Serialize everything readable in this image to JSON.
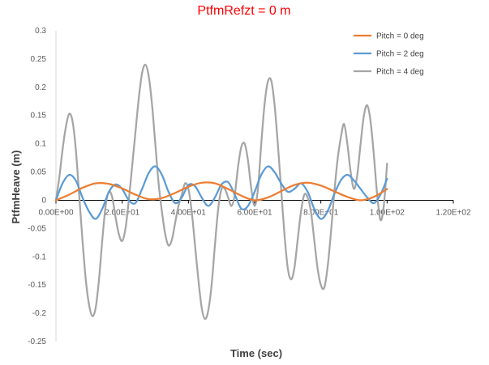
{
  "chart_data": {
    "type": "line",
    "title": "PtfmRefzt = 0 m",
    "xlabel": "Time (sec)",
    "ylabel": "PtfmHeave  (m)",
    "xlim": [
      0,
      120
    ],
    "ylim": [
      -0.25,
      0.3
    ],
    "x_ticks": [
      0,
      20,
      40,
      60,
      80,
      100,
      120
    ],
    "x_tick_labels": [
      "0.00E+00",
      "2.00E+01",
      "4.00E+01",
      "6.00E+01",
      "8.00E+01",
      "1.00E+02",
      "1.20E+02"
    ],
    "y_ticks": [
      -0.25,
      -0.2,
      -0.15,
      -0.1,
      -0.05,
      0,
      0.05,
      0.1,
      0.15,
      0.2,
      0.25,
      0.3
    ],
    "y_tick_labels": [
      "-0.25",
      "-0.2",
      "-0.15",
      "-0.1",
      "-0.05",
      "0",
      "0.05",
      "0.1",
      "0.15",
      "0.2",
      "0.25",
      "0.3"
    ],
    "grid": false,
    "legend_position": "top-right",
    "series": [
      {
        "name": "Pitch = 0 deg",
        "color": "#ed7d31",
        "x": [
          0,
          4,
          8,
          12,
          16,
          20,
          24,
          28,
          32,
          36,
          40,
          44,
          48,
          52,
          56,
          60,
          64,
          68,
          72,
          76,
          80,
          84,
          88,
          92,
          96,
          100
        ],
        "y": [
          0,
          0.01,
          0.022,
          0.03,
          0.029,
          0.021,
          0.01,
          0.002,
          0.004,
          0.013,
          0.024,
          0.031,
          0.03,
          0.02,
          0.008,
          0,
          0.005,
          0.016,
          0.027,
          0.031,
          0.026,
          0.016,
          0.006,
          0,
          0.006,
          0.02
        ]
      },
      {
        "name": "Pitch = 2 deg",
        "color": "#5b9bd5",
        "x": [
          0,
          2,
          4,
          6,
          8,
          10,
          12,
          14,
          16,
          18,
          20,
          22,
          24,
          26,
          28,
          30,
          32,
          34,
          36,
          38,
          40,
          42,
          44,
          46,
          48,
          50,
          52,
          54,
          56,
          58,
          60,
          62,
          64,
          66,
          68,
          70,
          72,
          74,
          76,
          78,
          80,
          82,
          84,
          86,
          88,
          90,
          92,
          94,
          96,
          98,
          100
        ],
        "y": [
          0,
          0.03,
          0.045,
          0.035,
          0.005,
          -0.02,
          -0.033,
          -0.015,
          0.015,
          0.028,
          0.02,
          0,
          -0.005,
          0.02,
          0.048,
          0.06,
          0.045,
          0.015,
          -0.005,
          0.005,
          0.027,
          0.025,
          0.005,
          -0.01,
          0.005,
          0.028,
          0.032,
          0.01,
          -0.015,
          -0.01,
          0.015,
          0.045,
          0.06,
          0.05,
          0.03,
          0.015,
          0.02,
          0.03,
          0.015,
          -0.015,
          -0.033,
          -0.02,
          0.01,
          0.035,
          0.045,
          0.035,
          0.02,
          0.005,
          -0.005,
          0.01,
          0.038
        ]
      },
      {
        "name": "Pitch = 4 deg",
        "color": "#a5a5a5",
        "x": [
          0,
          1,
          2,
          3,
          4,
          5,
          6,
          7,
          8,
          9,
          10,
          11,
          12,
          13,
          14,
          15,
          16,
          17,
          18,
          19,
          20,
          21,
          22,
          23,
          24,
          25,
          26,
          27,
          28,
          29,
          30,
          31,
          32,
          33,
          34,
          35,
          36,
          37,
          38,
          39,
          40,
          41,
          42,
          43,
          44,
          45,
          46,
          47,
          48,
          49,
          50,
          51,
          52,
          53,
          54,
          55,
          56,
          57,
          58,
          59,
          60,
          61,
          62,
          63,
          64,
          65,
          66,
          67,
          68,
          69,
          70,
          71,
          72,
          73,
          74,
          75,
          76,
          77,
          78,
          79,
          80,
          81,
          82,
          83,
          84,
          85,
          86,
          87,
          88,
          89,
          90,
          91,
          92,
          93,
          94,
          95,
          96,
          97,
          98,
          99,
          100
        ],
        "y": [
          0,
          0.04,
          0.09,
          0.13,
          0.153,
          0.14,
          0.09,
          0.01,
          -0.07,
          -0.14,
          -0.185,
          -0.205,
          -0.19,
          -0.14,
          -0.07,
          -0.01,
          0.015,
          0.005,
          -0.03,
          -0.06,
          -0.072,
          -0.05,
          0,
          0.06,
          0.12,
          0.18,
          0.225,
          0.24,
          0.22,
          0.17,
          0.1,
          0.03,
          -0.02,
          -0.06,
          -0.08,
          -0.07,
          -0.04,
          -0.01,
          0.01,
          0.03,
          0.02,
          -0.02,
          -0.08,
          -0.14,
          -0.19,
          -0.21,
          -0.195,
          -0.15,
          -0.08,
          -0.015,
          0.02,
          0.02,
          0.005,
          -0.01,
          0.01,
          0.06,
          0.095,
          0.1,
          0.07,
          0.02,
          -0.01,
          0.02,
          0.1,
          0.17,
          0.21,
          0.212,
          0.17,
          0.1,
          0.02,
          -0.06,
          -0.12,
          -0.14,
          -0.12,
          -0.07,
          -0.02,
          0.01,
          0.005,
          -0.02,
          -0.07,
          -0.12,
          -0.15,
          -0.155,
          -0.12,
          -0.06,
          0.01,
          0.07,
          0.11,
          0.135,
          0.1,
          0.05,
          0.02,
          0.045,
          0.1,
          0.15,
          0.168,
          0.14,
          0.08,
          0.01,
          -0.035,
          -0.01,
          0.065
        ]
      }
    ]
  }
}
